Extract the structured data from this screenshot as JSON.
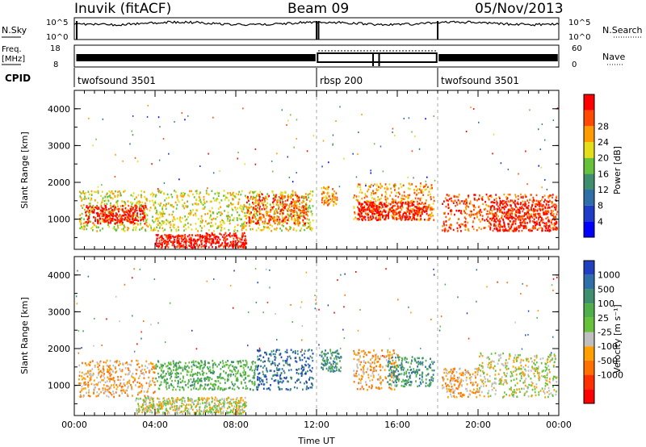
{
  "header": {
    "station": "Inuvik (fitACF)",
    "beam": "Beam 09",
    "date": "05/Nov/2013"
  },
  "panels": {
    "noise": {
      "left_label": "N.Sky",
      "right_label": "N.Search",
      "ticks_left": [
        "10^5",
        "10^0"
      ],
      "ticks_right": [
        "10^5",
        "10^0"
      ]
    },
    "freq": {
      "left_label_1": "Freq.",
      "left_label_2": "[MHz]",
      "ticks_left": [
        "18",
        "8"
      ],
      "right_label": "Nave",
      "ticks_right": [
        "60",
        "0"
      ]
    },
    "cpid": {
      "label": "CPID",
      "segments": [
        {
          "name": "twofsound 3501",
          "start": 0.0,
          "end": 12.0
        },
        {
          "name": "rbsp 200",
          "start": 12.0,
          "end": 18.0
        },
        {
          "name": "twofsound 3501",
          "start": 18.0,
          "end": 24.0
        }
      ]
    }
  },
  "chart_data": [
    {
      "type": "heatmap",
      "title": "",
      "ylabel": "Slant Range [km]",
      "xlabel": "",
      "x_ticks": [
        "00:00",
        "04:00",
        "08:00",
        "12:00",
        "16:00",
        "20:00",
        "00:00"
      ],
      "y_ticks": [
        "1000",
        "2000",
        "3000",
        "4000"
      ],
      "xlim_hours": [
        0,
        24
      ],
      "ylim_km": [
        180,
        4500
      ],
      "colorbar": {
        "label": "Power [dB]",
        "ticks": [
          "4",
          "8",
          "12",
          "16",
          "20",
          "24",
          "28"
        ],
        "colors": [
          "#0000ff",
          "#1e3cc8",
          "#2f6fa8",
          "#3f8f6e",
          "#66c23a",
          "#e6dd1a",
          "#ff9a00",
          "#ff4a00",
          "#ff0000"
        ]
      },
      "series": [
        {
          "start": 0.2,
          "end": 11.8,
          "range_km": [
            700,
            1800
          ],
          "level": 5
        },
        {
          "start": 0.5,
          "end": 3.5,
          "range_km": [
            900,
            1400
          ],
          "level": 8
        },
        {
          "start": 4.0,
          "end": 6.5,
          "range_km": [
            250,
            600
          ],
          "level": 8
        },
        {
          "start": 6.5,
          "end": 8.5,
          "range_km": [
            250,
            650
          ],
          "level": 8
        },
        {
          "start": 8.5,
          "end": 11.5,
          "range_km": [
            900,
            1700
          ],
          "level": 7
        },
        {
          "start": 12.2,
          "end": 13.0,
          "range_km": [
            1400,
            1900
          ],
          "level": 6
        },
        {
          "start": 13.8,
          "end": 17.8,
          "range_km": [
            1000,
            2000
          ],
          "level": 6
        },
        {
          "start": 14.0,
          "end": 17.5,
          "range_km": [
            1000,
            1500
          ],
          "level": 8
        },
        {
          "start": 18.2,
          "end": 23.9,
          "range_km": [
            700,
            1700
          ],
          "level": 7
        },
        {
          "start": 20.5,
          "end": 23.9,
          "range_km": [
            700,
            1500
          ],
          "level": 8
        }
      ]
    },
    {
      "type": "heatmap",
      "title": "",
      "ylabel": "Slant Range [km]",
      "xlabel": "Time UT",
      "x_ticks": [
        "00:00",
        "04:00",
        "08:00",
        "12:00",
        "16:00",
        "20:00",
        "00:00"
      ],
      "y_ticks": [
        "1000",
        "2000",
        "3000",
        "4000"
      ],
      "xlim_hours": [
        0,
        24
      ],
      "ylim_km": [
        180,
        4500
      ],
      "colorbar": {
        "label": "Velocity [m s⁻¹]",
        "ticks": [
          "1000",
          "500",
          "100",
          "25",
          "-25",
          "-100",
          "-500",
          "-1000"
        ],
        "colors": [
          "#2040c0",
          "#2f6fa8",
          "#3f8f6e",
          "#4fb04a",
          "#66c23a",
          "#bfbfbf",
          "#ffa000",
          "#ff7000",
          "#ff3000",
          "#ff0000"
        ]
      },
      "series": [
        {
          "start": 0.2,
          "end": 4.0,
          "range_km": [
            700,
            1700
          ],
          "level": 6
        },
        {
          "start": 3.0,
          "end": 8.5,
          "range_km": [
            250,
            700
          ],
          "level": 5
        },
        {
          "start": 4.0,
          "end": 9.0,
          "range_km": [
            900,
            1700
          ],
          "level": 3
        },
        {
          "start": 9.0,
          "end": 11.8,
          "range_km": [
            900,
            2000
          ],
          "level": 1
        },
        {
          "start": 12.2,
          "end": 13.2,
          "range_km": [
            1400,
            2000
          ],
          "level": 2
        },
        {
          "start": 13.8,
          "end": 16.0,
          "range_km": [
            900,
            2000
          ],
          "level": 6
        },
        {
          "start": 15.5,
          "end": 17.8,
          "range_km": [
            1000,
            1800
          ],
          "level": 2
        },
        {
          "start": 18.2,
          "end": 20.0,
          "range_km": [
            700,
            1500
          ],
          "level": 6
        },
        {
          "start": 20.0,
          "end": 23.9,
          "range_km": [
            700,
            1900
          ],
          "level": 5
        }
      ]
    }
  ]
}
